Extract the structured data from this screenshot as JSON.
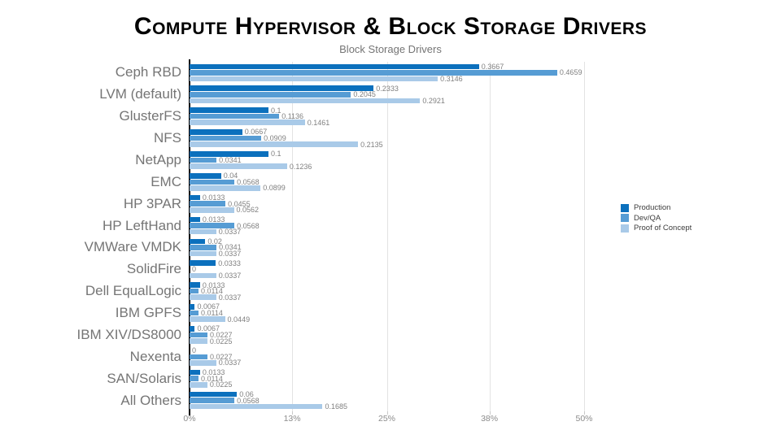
{
  "page": {
    "title": "Compute Hypervisor & Block Storage Drivers",
    "subtitle": "Block Storage Drivers"
  },
  "chart_data": {
    "type": "bar",
    "orientation": "horizontal",
    "title": "Compute Hypervisor & Block Storage Drivers",
    "subtitle": "Block Storage Drivers",
    "categories": [
      "Ceph RBD",
      "LVM (default)",
      "GlusterFS",
      "NFS",
      "NetApp",
      "EMC",
      "HP 3PAR",
      "HP LeftHand",
      "VMWare VMDK",
      "SolidFire",
      "Dell EqualLogic",
      "IBM GPFS",
      "IBM XIV/DS8000",
      "Nexenta",
      "SAN/Solaris",
      "All Others"
    ],
    "series": [
      {
        "name": "Production",
        "color": "#0b70bd",
        "values": [
          0.3667,
          0.2333,
          0.1,
          0.0667,
          0.1,
          0.04,
          0.0133,
          0.0133,
          0.02,
          0.0333,
          0.0133,
          0.0067,
          0.0067,
          0,
          0.0133,
          0.06
        ]
      },
      {
        "name": "Dev/QA",
        "color": "#569cd4",
        "values": [
          0.4659,
          0.2045,
          0.1136,
          0.0909,
          0.0341,
          0.0568,
          0.0455,
          0.0568,
          0.0341,
          0,
          0.0114,
          0.0114,
          0.0227,
          0.0227,
          0.0114,
          0.0568
        ]
      },
      {
        "name": "Proof of Concept",
        "color": "#a9cae8",
        "values": [
          0.3146,
          0.2921,
          0.1461,
          0.2135,
          0.1236,
          0.0899,
          0.0562,
          0.0337,
          0.0337,
          0.0337,
          0.0337,
          0.0449,
          0.0225,
          0.0337,
          0.0225,
          0.1685
        ]
      }
    ],
    "x_ticks": [
      {
        "label": "0%",
        "value": 0
      },
      {
        "label": "13%",
        "value": 0.13
      },
      {
        "label": "25%",
        "value": 0.25
      },
      {
        "label": "38%",
        "value": 0.38
      },
      {
        "label": "50%",
        "value": 0.5
      }
    ],
    "xlim": [
      0,
      0.5
    ],
    "grid": true,
    "legend_position": "right",
    "value_labels": true
  }
}
